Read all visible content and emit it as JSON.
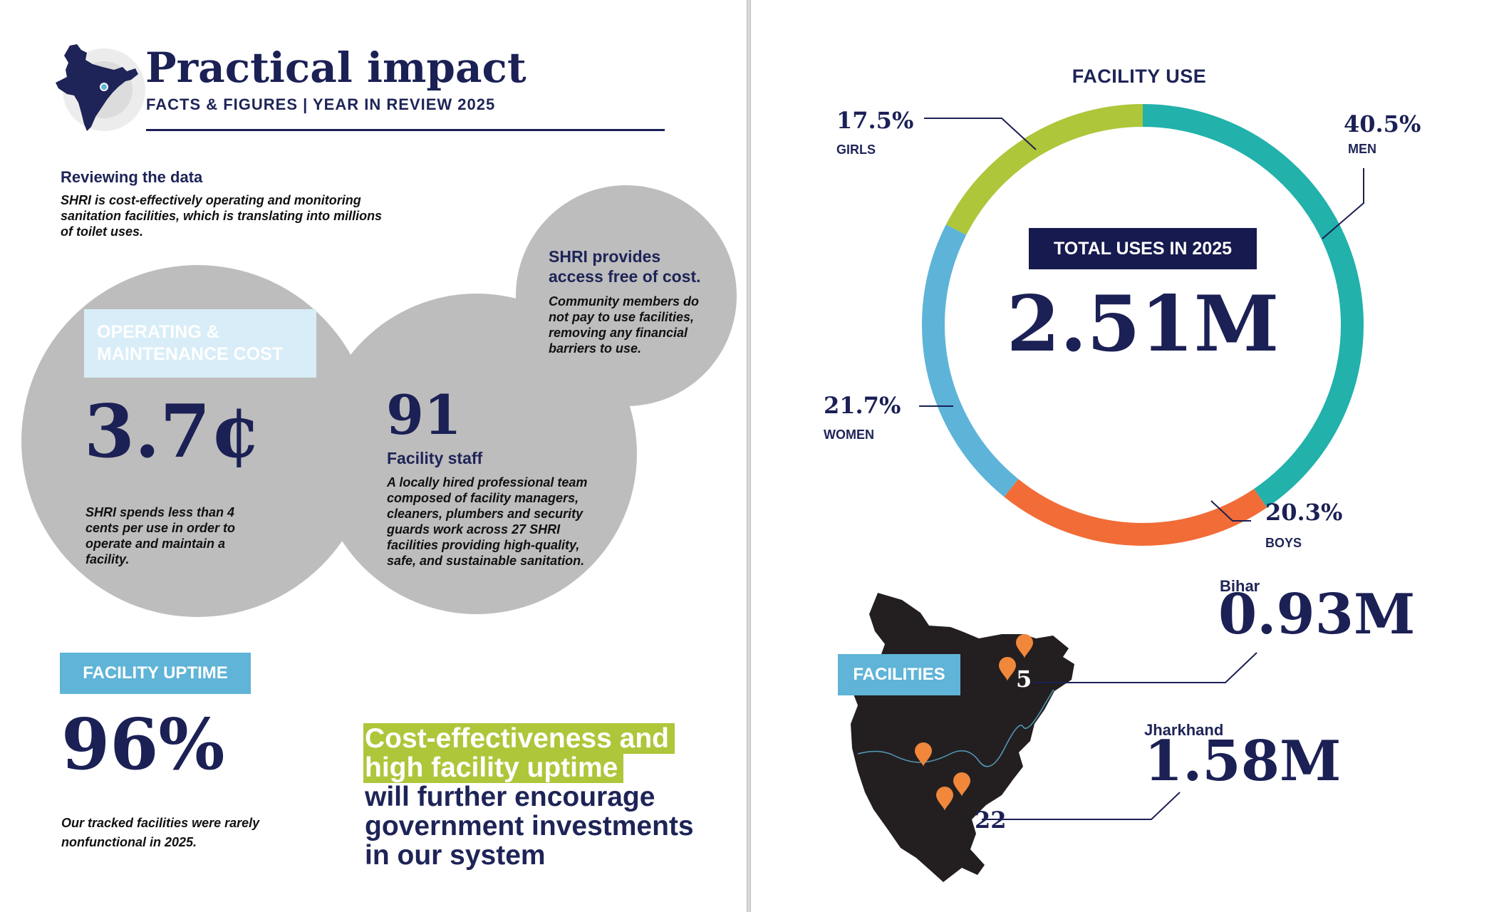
{
  "left": {
    "title": "Practical impact",
    "subtitle": "FACTS & FIGURES | YEAR IN REVIEW 2025",
    "review": {
      "heading": "Reviewing the data",
      "text": "SHRI is cost-effectively operating and monitoring sanitation facilities, which is translating into millions of toilet uses."
    },
    "cost": {
      "label": "OPERATING & MAINTENANCE COST",
      "value": "3.7¢",
      "text": "SHRI spends less than 4 cents per use in order to operate and maintain a facility."
    },
    "staff": {
      "value": "91",
      "label": "Facility staff",
      "text": "A locally hired professional team composed of facility managers, cleaners, plumbers and security guards work across 27 SHRI facilities providing high-quality, safe, and sustainable sanitation."
    },
    "free": {
      "heading": "SHRI provides access free of cost.",
      "text": "Community members do not pay to use facilities, removing any financial barriers to use."
    },
    "uptime": {
      "label": "FACILITY UPTIME",
      "value": "96%",
      "text": "Our tracked facilities were rarely nonfunctional in 2025."
    },
    "quote": {
      "line1": "Cost-effectiveness and",
      "line2": "high facility uptime",
      "line3": "will further encourage",
      "line4": "government investments",
      "line5": "in our system"
    }
  },
  "right": {
    "facility_use": {
      "title": "FACILITY USE",
      "total_label": "TOTAL USES IN 2025",
      "total_value": "2.51M",
      "segments": [
        {
          "label": "MEN",
          "value_text": "40.5%",
          "value": 40.5,
          "color": "#22b1ab"
        },
        {
          "label": "BOYS",
          "value_text": "20.3%",
          "value": 20.3,
          "color": "#f16c37"
        },
        {
          "label": "WOMEN",
          "value_text": "21.7%",
          "value": 21.7,
          "color": "#5db4d8"
        },
        {
          "label": "GIRLS",
          "value_text": "17.5%",
          "value": 17.5,
          "color": "#aec63a"
        }
      ]
    },
    "facilities": {
      "label": "FACILITIES",
      "bihar": {
        "name": "Bihar",
        "value": "0.93M",
        "count": "5"
      },
      "jharkhand": {
        "name": "Jharkhand",
        "value": "1.58M",
        "count": "22"
      }
    }
  },
  "colors": {
    "navy": "#1b2055",
    "circle_grey": "#bdbdbd",
    "label_light_blue": "#d8edf7",
    "uptime_blue": "#5fb4d7",
    "quote_green": "#aec63a",
    "pin_orange": "#f0873b"
  }
}
